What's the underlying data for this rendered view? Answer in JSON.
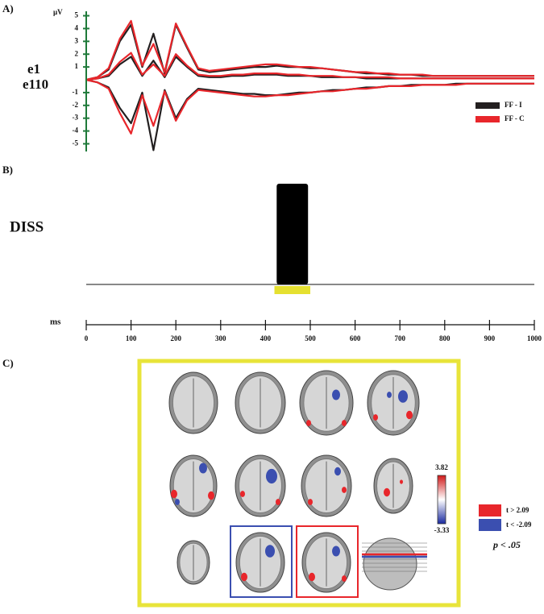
{
  "chart_data": [
    {
      "type": "line",
      "label": "A)",
      "y_label": "µV",
      "channel_labels": [
        "e1",
        "e110"
      ],
      "x": [
        0,
        25,
        50,
        75,
        100,
        125,
        150,
        175,
        200,
        225,
        250,
        275,
        300,
        325,
        350,
        375,
        400,
        425,
        450,
        475,
        500,
        525,
        550,
        575,
        600,
        625,
        650,
        675,
        700,
        725,
        750,
        775,
        800,
        825,
        850,
        875,
        900,
        925,
        950,
        975,
        1000
      ],
      "xlim": [
        0,
        1000
      ],
      "ylim": [
        -5.6,
        5.6
      ],
      "yticks": [
        5,
        4,
        3,
        2,
        1,
        -1,
        -2,
        -3,
        -4,
        -5
      ],
      "axis_color": "#1f7a3a",
      "series": [
        {
          "name": "FF - I",
          "color": "#231f20",
          "values": [
            [
              0,
              0.2,
              0.8,
              3,
              4.3,
              1,
              3.6,
              0.5,
              4.3,
              2.5,
              0.8,
              0.6,
              0.7,
              0.8,
              0.9,
              1,
              1,
              1.1,
              1,
              1,
              0.9,
              0.9,
              0.8,
              0.7,
              0.6,
              0.5,
              0.5,
              0.4,
              0.4,
              0.4,
              0.3,
              0.3,
              0.3,
              0.3,
              0.3,
              0.3,
              0.3,
              0.3,
              0.3,
              0.3,
              0.3
            ],
            [
              0,
              -0.2,
              -0.6,
              -2.2,
              -3.4,
              -1,
              -5.5,
              -0.8,
              -3,
              -1.5,
              -0.7,
              -0.8,
              -0.9,
              -1,
              -1.1,
              -1.1,
              -1.2,
              -1.2,
              -1.1,
              -1,
              -1,
              -0.9,
              -0.8,
              -0.8,
              -0.7,
              -0.6,
              -0.6,
              -0.5,
              -0.5,
              -0.4,
              -0.4,
              -0.4,
              -0.4,
              -0.3,
              -0.3,
              -0.3,
              -0.3,
              -0.3,
              -0.3,
              -0.3,
              -0.3
            ],
            [
              0,
              0.1,
              0.3,
              1.2,
              1.8,
              0.3,
              1.5,
              0.2,
              1.8,
              1,
              0.3,
              0.2,
              0.2,
              0.3,
              0.3,
              0.4,
              0.4,
              0.4,
              0.3,
              0.3,
              0.3,
              0.2,
              0.2,
              0.2,
              0.2,
              0.1,
              0.1,
              0.1,
              0.1,
              0.1,
              0.1,
              0.1,
              0.1,
              0.1,
              0.1,
              0.1,
              0.1,
              0.1,
              0.1,
              0.1,
              0.1
            ]
          ]
        },
        {
          "name": "FF - C",
          "color": "#e8262b",
          "values": [
            [
              0,
              0.2,
              0.9,
              3.2,
              4.6,
              1.1,
              2.8,
              0.6,
              4.4,
              2.6,
              0.9,
              0.7,
              0.8,
              0.9,
              1,
              1.1,
              1.2,
              1.2,
              1.1,
              1,
              1,
              0.9,
              0.8,
              0.7,
              0.6,
              0.6,
              0.5,
              0.5,
              0.4,
              0.4,
              0.4,
              0.3,
              0.3,
              0.3,
              0.3,
              0.3,
              0.3,
              0.3,
              0.3,
              0.3,
              0.3
            ],
            [
              0,
              -0.2,
              -0.7,
              -2.6,
              -4.2,
              -1.2,
              -3.6,
              -0.9,
              -3.2,
              -1.6,
              -0.8,
              -0.9,
              -1,
              -1.1,
              -1.2,
              -1.3,
              -1.3,
              -1.2,
              -1.2,
              -1.1,
              -1,
              -0.9,
              -0.9,
              -0.8,
              -0.7,
              -0.7,
              -0.6,
              -0.5,
              -0.5,
              -0.5,
              -0.4,
              -0.4,
              -0.4,
              -0.4,
              -0.3,
              -0.3,
              -0.3,
              -0.3,
              -0.3,
              -0.3,
              -0.3
            ],
            [
              0,
              0.1,
              0.4,
              1.4,
              2.1,
              0.4,
              1.2,
              0.3,
              2,
              1.1,
              0.4,
              0.3,
              0.3,
              0.4,
              0.4,
              0.5,
              0.5,
              0.5,
              0.4,
              0.4,
              0.3,
              0.3,
              0.3,
              0.2,
              0.2,
              0.2,
              0.2,
              0.2,
              0.1,
              0.1,
              0.1,
              0.1,
              0.1,
              0.1,
              0.1,
              0.1,
              0.1,
              0.1,
              0.1,
              0.1,
              0.1
            ]
          ]
        }
      ]
    },
    {
      "type": "interval",
      "label": "B)",
      "y_label": "DISS",
      "x_label": "ms",
      "xlim": [
        0,
        1000
      ],
      "xticks": [
        0,
        100,
        200,
        300,
        400,
        500,
        600,
        700,
        800,
        900,
        1000
      ],
      "series": [
        {
          "color": "#000000",
          "x": [
            425,
            495
          ]
        },
        {
          "color": "#e5e030",
          "x": [
            420,
            500
          ]
        }
      ]
    }
  ],
  "panel_c": {
    "label": "C)",
    "frame_color": "#e8e43a",
    "colorbar_lim": [
      -3.33,
      3.82
    ],
    "legend": [
      {
        "label": "t > 2.09",
        "color": "#e8262b"
      },
      {
        "label": "t < -2.09",
        "color": "#3b4fb0"
      }
    ],
    "note": "p < .05"
  }
}
